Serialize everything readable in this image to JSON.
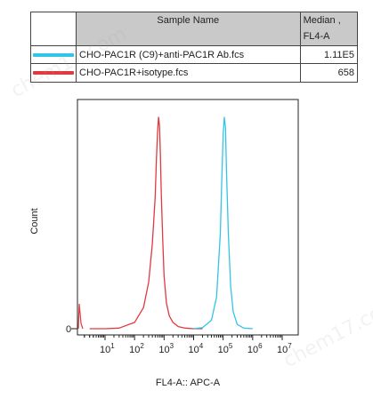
{
  "legend": {
    "header": {
      "sample": "Sample Name",
      "median_line1": "Median ,",
      "median_line2": "FL4-A"
    },
    "rows": [
      {
        "name": "CHO-PAC1R (C9)+anti-PAC1R Ab.fcs",
        "median": "1.11E5",
        "color": "#33c5e8"
      },
      {
        "name": "CHO-PAC1R+isotype.fcs",
        "median": "658",
        "color": "#e03a3e"
      }
    ]
  },
  "watermarks": [
    "chem17.com",
    "chem17.com"
  ],
  "chart_data": {
    "type": "line",
    "xlabel": "FL4-A:: APC-A",
    "ylabel": "Count",
    "x_scale": "log",
    "x_ticks": [
      {
        "base": "10",
        "exp": "1"
      },
      {
        "base": "10",
        "exp": "2"
      },
      {
        "base": "10",
        "exp": "3"
      },
      {
        "base": "10",
        "exp": "4"
      },
      {
        "base": "10",
        "exp": "5"
      },
      {
        "base": "10",
        "exp": "6"
      },
      {
        "base": "10",
        "exp": "7"
      }
    ],
    "y_ticks": [
      "0"
    ],
    "grid": false,
    "series": [
      {
        "name": "CHO-PAC1R+isotype.fcs",
        "color": "#e03a3e",
        "x": [
          3,
          10,
          30,
          100,
          200,
          300,
          400,
          500,
          550,
          600,
          650,
          700,
          750,
          800,
          900,
          1000,
          1200,
          1500,
          2000,
          3000,
          5000,
          10000,
          20000
        ],
        "y": [
          0,
          0,
          0.3,
          3,
          10,
          22,
          40,
          62,
          80,
          93,
          100,
          96,
          82,
          65,
          42,
          25,
          12,
          6,
          3,
          1,
          0.3,
          0,
          0
        ]
      },
      {
        "name": "CHO-PAC1R (C9)+anti-PAC1R Ab.fcs",
        "color": "#33c5e8",
        "x": [
          10000,
          20000,
          40000,
          60000,
          80000,
          90000,
          100000,
          110000,
          120000,
          130000,
          150000,
          180000,
          220000,
          300000,
          500000,
          1000000
        ],
        "y": [
          0,
          0.5,
          4,
          15,
          45,
          70,
          92,
          100,
          95,
          75,
          45,
          20,
          8,
          2,
          0.3,
          0
        ]
      }
    ]
  }
}
